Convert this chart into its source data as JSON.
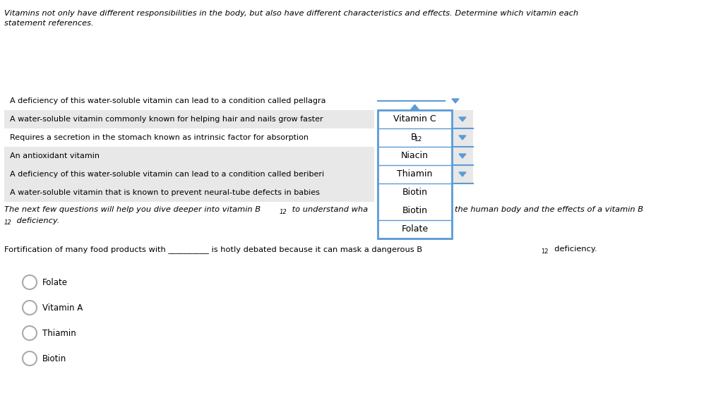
{
  "bg_color": "#ffffff",
  "title_line1": "Vitamins not only have different responsibilities in the body, but also have different characteristics and effects. Determine which vitamin each",
  "title_line2": "statement references.",
  "statements": [
    "A deficiency of this water-soluble vitamin can lead to a condition called pellagra",
    "A water-soluble vitamin commonly known for helping hair and nails grow faster",
    "Requires a secretion in the stomach known as intrinsic factor for absorption",
    "An antioxidant vitamin",
    "A deficiency of this water-soluble vitamin can lead to a condition called beriberi",
    "A water-soluble vitamin that is known to prevent neural-tube defects in babies"
  ],
  "dropdown_options": [
    "Vitamin C",
    "B",
    "Niacin",
    "Thiamin",
    "Biotin",
    "Folate"
  ],
  "dropdown_sub": [
    "",
    "12",
    "",
    "",
    "",
    ""
  ],
  "next_q_part1": "The next few questions will help you dive deeper into vitamin B",
  "next_q_sub1": "12",
  "next_q_part2": " to understand wha",
  "next_q_right": "the human body and the effects of a vitamin B",
  "next_q_sub2": "12",
  "next_q_line2a": "12",
  "next_q_line2b": " deficiency.",
  "fort_part1": "Fortification of many food products with __________ is hotly debated because it can mask a dangerous B",
  "fort_sub": "12",
  "fort_part2": "  deficiency.",
  "radio_options": [
    "Folate",
    "Vitamin A",
    "Thiamin",
    "Biotin"
  ],
  "dropdown_box_color": "#5b9bd5",
  "statement_bg_even": "#e8e8e8",
  "statement_bg_odd": "#ffffff",
  "text_color": "#000000",
  "arrow_color": "#5b9bd5",
  "sep_color": "#5b9bd5",
  "dd_text_color": "#000000",
  "radio_color": "#aaaaaa"
}
